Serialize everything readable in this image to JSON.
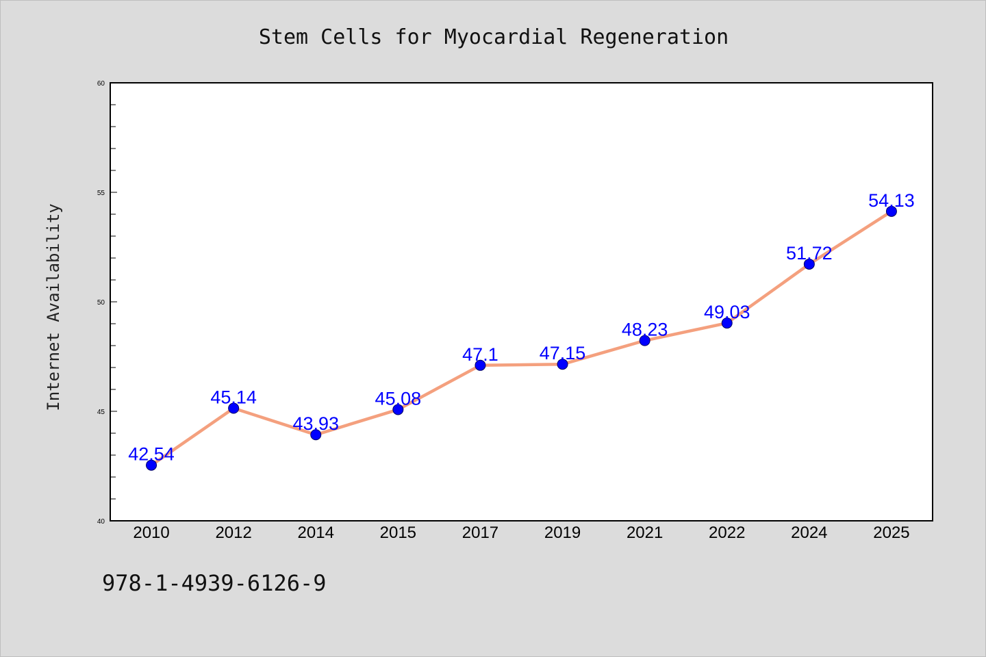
{
  "footer": {
    "identifier": "978-1-4939-6126-9"
  },
  "colors": {
    "background": "#dcdcdc",
    "plot_background": "#ffffff",
    "line": "#f4a07e",
    "marker": "#0000ff",
    "data_label": "#0000ff"
  },
  "chart_data": {
    "type": "line",
    "title": "Stem Cells for Myocardial Regeneration",
    "xlabel": "",
    "ylabel": "Internet Availability",
    "categories": [
      "2010",
      "2012",
      "2014",
      "2015",
      "2017",
      "2019",
      "2021",
      "2022",
      "2024",
      "2025"
    ],
    "series": [
      {
        "values": [
          42.54,
          45.14,
          43.93,
          45.08,
          47.1,
          47.15,
          48.23,
          49.03,
          51.72,
          54.13
        ],
        "labels": [
          "42.54",
          "45.14",
          "43.93",
          "45.08",
          "47.1",
          "47.15",
          "48.23",
          "49.03",
          "51.72",
          "54.13"
        ]
      }
    ],
    "ylim": [
      40,
      60
    ],
    "yticks": [
      40,
      45,
      50,
      55,
      60
    ],
    "ytick_labels": [
      "40",
      "45",
      "50",
      "55",
      "60"
    ],
    "grid": false,
    "legend": "none"
  }
}
